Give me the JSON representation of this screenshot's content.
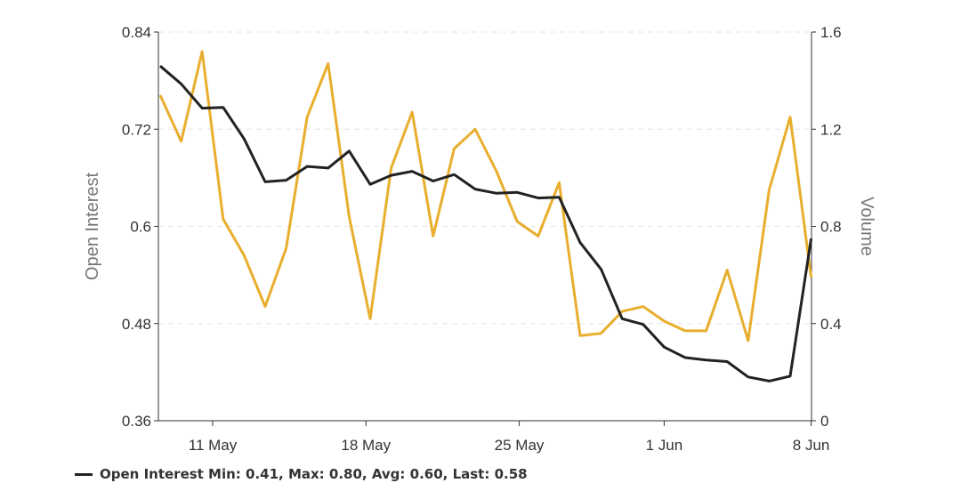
{
  "chart_data": {
    "type": "line",
    "title": "",
    "xlabel": "",
    "ylabel": "Open Interest",
    "y2label": "Volume",
    "ylim": [
      0.36,
      0.84
    ],
    "y2lim": [
      0,
      1.6
    ],
    "yticks": [
      "0.36",
      "0.48",
      "0.6",
      "0.72",
      "0.84"
    ],
    "ytick_values": [
      0.36,
      0.48,
      0.6,
      0.72,
      0.84
    ],
    "y2ticks": [
      "0",
      "0.4",
      "0.8",
      "1.2",
      "1.6"
    ],
    "y2tick_values": [
      0,
      0.4,
      0.8,
      1.2,
      1.6
    ],
    "xticks": [
      {
        "label": "11 May",
        "index": 2.5
      },
      {
        "label": "18 May",
        "index": 9.8
      },
      {
        "label": "25 May",
        "index": 17.1
      },
      {
        "label": "1 Jun",
        "index": 24.0
      },
      {
        "label": "8 Jun",
        "index": 31
      }
    ],
    "grid": true,
    "series": [
      {
        "name": "Open Interest",
        "axis": "left",
        "color": "#222222",
        "values": [
          0.798,
          0.776,
          0.746,
          0.747,
          0.708,
          0.655,
          0.657,
          0.674,
          0.672,
          0.693,
          0.652,
          0.663,
          0.668,
          0.656,
          0.664,
          0.646,
          0.641,
          0.642,
          0.635,
          0.636,
          0.58,
          0.547,
          0.486,
          0.479,
          0.451,
          0.438,
          0.435,
          0.433,
          0.414,
          0.409,
          0.415,
          0.585
        ]
      },
      {
        "name": "Volume",
        "axis": "right",
        "color": "#E8AE2E",
        "values": [
          1.34,
          1.15,
          1.52,
          0.83,
          0.68,
          0.47,
          0.71,
          1.25,
          1.47,
          0.84,
          0.42,
          1.04,
          1.27,
          0.76,
          1.12,
          1.2,
          1.03,
          0.82,
          0.76,
          0.98,
          0.35,
          0.36,
          0.45,
          0.47,
          0.41,
          0.37,
          0.37,
          0.62,
          0.33,
          0.95,
          1.25,
          0.59
        ]
      }
    ],
    "legend_position": "bottom-left"
  },
  "legend": {
    "text": "Open Interest Min: 0.41, Max: 0.80, Avg: 0.60, Last: 0.58"
  }
}
